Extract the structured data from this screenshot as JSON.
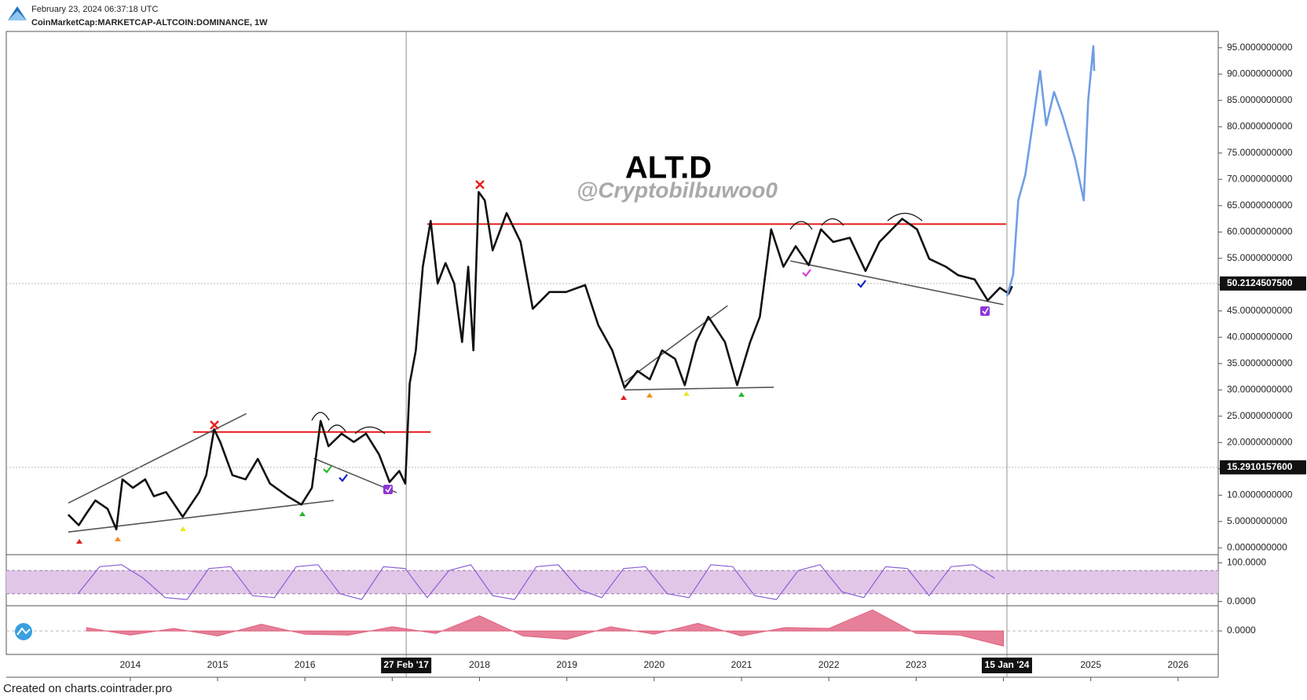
{
  "header": {
    "date": "February 23, 2024 06:37:18 UTC",
    "symbol": "CoinMarketCap:MARKETCAP-ALTCOIN:DOMINANCE, 1W"
  },
  "footer": "Created on charts.cointrader.pro",
  "chart_data": [
    {
      "type": "line",
      "title": "ALT.D",
      "subtitle": "@Cryptobilbuwoo0",
      "xlim": [
        2012.58,
        2026.46
      ],
      "ylim": [
        -1.3,
        98.1
      ],
      "xticks": [
        2014,
        2015,
        2016,
        2017,
        2018,
        2019,
        2020,
        2021,
        2022,
        2023,
        2024,
        2025,
        2026
      ],
      "yticks": [
        {
          "value": 0,
          "label": "0.0000000000"
        },
        {
          "value": 5,
          "label": "5.0000000000"
        },
        {
          "value": 10,
          "label": "10.0000000000"
        },
        {
          "value": 15,
          "label": "15.0000000000"
        },
        {
          "value": 20,
          "label": "20.0000000000"
        },
        {
          "value": 25,
          "label": "25.0000000000"
        },
        {
          "value": 30,
          "label": "30.0000000000"
        },
        {
          "value": 35,
          "label": "35.0000000000"
        },
        {
          "value": 40,
          "label": "40.0000000000"
        },
        {
          "value": 45,
          "label": "45.0000000000"
        },
        {
          "value": 50,
          "label": "50.0000000000"
        },
        {
          "value": 55,
          "label": "55.0000000000"
        },
        {
          "value": 60,
          "label": "60.0000000000"
        },
        {
          "value": 65,
          "label": "65.0000000000"
        },
        {
          "value": 70,
          "label": "70.0000000000"
        },
        {
          "value": 75,
          "label": "75.0000000000"
        },
        {
          "value": 80,
          "label": "80.0000000000"
        },
        {
          "value": 85,
          "label": "85.0000000000"
        },
        {
          "value": 90,
          "label": "90.0000000000"
        },
        {
          "value": 95,
          "label": "95.0000000000"
        }
      ],
      "series": [
        {
          "color": "#111111",
          "x": [
            2013.29,
            2013.41,
            2013.5,
            2013.6,
            2013.74,
            2013.84,
            2013.91,
            2014.03,
            2014.17,
            2014.27,
            2014.41,
            2014.6,
            2014.79,
            2014.87,
            2014.96,
            2015.03,
            2015.17,
            2015.32,
            2015.46,
            2015.6,
            2015.8,
            2015.96,
            2016.08,
            2016.18,
            2016.27,
            2016.42,
            2016.56,
            2016.7,
            2016.85,
            2016.97,
            2017.08,
            2017.15,
            2017.2,
            2017.27,
            2017.35,
            2017.44,
            2017.52,
            2017.61,
            2017.71,
            2017.8,
            2017.87,
            2017.93,
            2017.99,
            2018.06,
            2018.15,
            2018.31,
            2018.47,
            2018.61,
            2018.8,
            2018.99,
            2019.21,
            2019.36,
            2019.52,
            2019.66,
            2019.81,
            2019.95,
            2020.09,
            2020.24,
            2020.35,
            2020.48,
            2020.62,
            2020.81,
            2020.95,
            2021.1,
            2021.21,
            2021.34,
            2021.48,
            2021.62,
            2021.77,
            2021.91,
            2022.05,
            2022.24,
            2022.42,
            2022.58,
            2022.84,
            2023.01,
            2023.15,
            2023.34,
            2023.48,
            2023.67,
            2023.82,
            2023.96,
            2024.06,
            2024.1
          ],
          "values": [
            6.3,
            4.3,
            6.6,
            9.0,
            7.4,
            3.5,
            13.0,
            11.4,
            13.0,
            9.8,
            10.6,
            5.9,
            10.6,
            13.8,
            22.5,
            20.1,
            13.8,
            13.0,
            16.9,
            12.2,
            9.8,
            8.2,
            11.4,
            24.1,
            19.3,
            21.7,
            20.1,
            21.7,
            17.7,
            12.5,
            14.6,
            12.2,
            31.2,
            37.5,
            53.4,
            62.1,
            50.2,
            54.1,
            50.2,
            39.1,
            53.4,
            37.5,
            67.6,
            66.0,
            56.5,
            63.6,
            58.1,
            45.4,
            48.6,
            48.6,
            49.9,
            42.3,
            37.5,
            30.4,
            33.6,
            32.0,
            37.5,
            35.9,
            30.9,
            39.1,
            43.9,
            39.1,
            30.9,
            39.1,
            43.9,
            60.5,
            53.4,
            57.3,
            53.7,
            60.5,
            58.1,
            58.9,
            52.6,
            58.1,
            62.5,
            60.5,
            54.9,
            53.4,
            51.8,
            51.0,
            47.0,
            49.4,
            48.3,
            49.7
          ]
        },
        {
          "color": "#6f9ee3",
          "x": [
            2024.04,
            2024.11,
            2024.17,
            2024.25,
            2024.34,
            2024.42,
            2024.49,
            2024.58,
            2024.68,
            2024.82,
            2024.92,
            2024.97,
            2025.03,
            2025.04
          ],
          "values": [
            47.8,
            51.8,
            66.0,
            70.8,
            81.1,
            90.6,
            80.3,
            86.6,
            81.9,
            73.9,
            66.0,
            85.0,
            95.3,
            90.6
          ]
        }
      ],
      "lines": [
        {
          "color": "#e8201d",
          "x": [
            2014.72,
            2017.44
          ],
          "y": [
            22,
            22
          ]
        },
        {
          "color": "#e8201d",
          "x": [
            2017.4,
            2024.03
          ],
          "y": [
            61.5,
            61.5
          ]
        },
        {
          "color": "#555555",
          "x": [
            2013.29,
            2015.33
          ],
          "y": [
            8.5,
            25.5
          ]
        },
        {
          "color": "#555555",
          "x": [
            2013.29,
            2016.33
          ],
          "y": [
            3,
            9
          ]
        },
        {
          "color": "#555555",
          "x": [
            2016.1,
            2017.05
          ],
          "y": [
            17,
            10.5
          ]
        },
        {
          "color": "#555555",
          "x": [
            2019.66,
            2020.84
          ],
          "y": [
            31.5,
            46
          ]
        },
        {
          "color": "#555555",
          "x": [
            2019.66,
            2021.37
          ],
          "y": [
            30,
            30.5
          ]
        },
        {
          "color": "#555555",
          "x": [
            2021.56,
            2024.0
          ],
          "y": [
            54.5,
            46.2
          ]
        }
      ],
      "price_labels": [
        {
          "value": 50.21245075,
          "label": "50.2124507500"
        },
        {
          "value": 15.29101576,
          "label": "15.2910157600"
        }
      ],
      "date_labels": [
        {
          "value": 2017.16,
          "label": "27 Feb '17"
        },
        {
          "value": 2024.04,
          "label": "15 Jan '24"
        }
      ]
    },
    {
      "type": "line",
      "xlim": [
        2012.58,
        2026.46
      ],
      "ylim": [
        -11,
        121
      ],
      "yticks": [
        {
          "value": 0,
          "label": "0.0000"
        },
        {
          "value": 100,
          "label": "100.0000"
        }
      ],
      "bands": [
        20,
        80
      ],
      "series": [
        {
          "color": "#8a5cd6",
          "x": [
            2013.4,
            2013.65,
            2013.9,
            2014.15,
            2014.4,
            2014.65,
            2014.9,
            2015.15,
            2015.4,
            2015.65,
            2015.9,
            2016.15,
            2016.4,
            2016.65,
            2016.9,
            2017.15,
            2017.4,
            2017.65,
            2017.9,
            2018.15,
            2018.4,
            2018.65,
            2018.9,
            2019.15,
            2019.4,
            2019.65,
            2019.9,
            2020.15,
            2020.4,
            2020.65,
            2020.9,
            2021.15,
            2021.4,
            2021.65,
            2021.9,
            2022.15,
            2022.4,
            2022.65,
            2022.9,
            2023.15,
            2023.4,
            2023.65,
            2023.9
          ],
          "values": [
            20,
            90,
            95,
            60,
            10,
            5,
            85,
            90,
            15,
            10,
            90,
            95,
            20,
            5,
            90,
            85,
            10,
            80,
            95,
            15,
            5,
            90,
            95,
            30,
            10,
            85,
            90,
            20,
            10,
            95,
            90,
            15,
            5,
            80,
            95,
            25,
            10,
            90,
            85,
            15,
            90,
            95,
            60
          ]
        }
      ]
    },
    {
      "type": "area",
      "xlim": [
        2012.58,
        2026.46
      ],
      "ylim": [
        -2.8,
        3
      ],
      "yticks": [
        {
          "value": 0,
          "label": "0.0000"
        }
      ],
      "series": [
        {
          "color": "#e0607e",
          "x": [
            2013.5,
            2014.0,
            2014.5,
            2015.0,
            2015.5,
            2016.0,
            2016.5,
            2017.0,
            2017.5,
            2018.0,
            2018.5,
            2019.0,
            2019.5,
            2020.0,
            2020.5,
            2021.0,
            2021.5,
            2022.0,
            2022.5,
            2023.0,
            2023.5,
            2024.0
          ],
          "values": [
            0.4,
            -0.5,
            0.3,
            -0.6,
            0.8,
            -0.4,
            -0.5,
            0.5,
            -0.3,
            1.8,
            -0.6,
            -1.0,
            0.5,
            -0.4,
            0.9,
            -0.6,
            0.4,
            0.3,
            2.5,
            -0.3,
            -0.5,
            -1.8
          ]
        }
      ]
    }
  ]
}
